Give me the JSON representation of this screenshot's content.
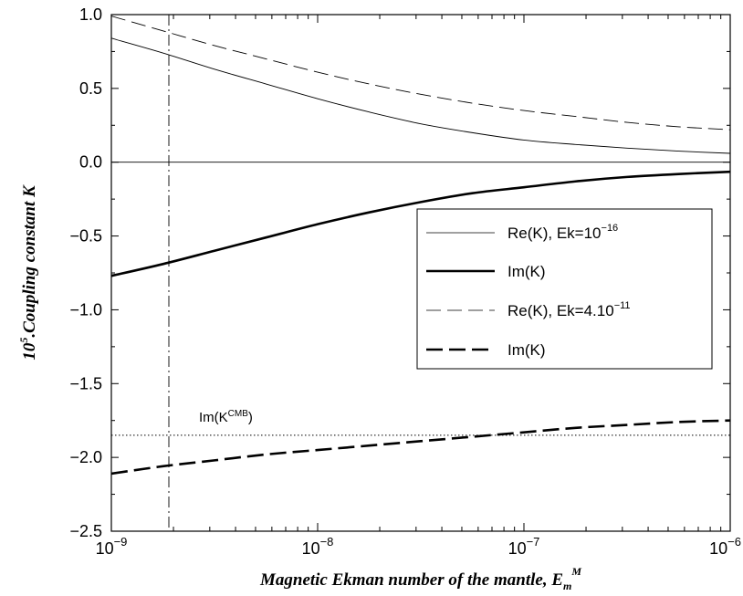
{
  "chart_data": {
    "type": "line",
    "title": "",
    "xlabel": {
      "main": "Magnetic Ekman number of the mantle, E",
      "sub": "m",
      "sup": "M"
    },
    "ylabel": {
      "pre": "10",
      "sup": "5",
      "post": ".Coupling constant K"
    },
    "xscale": "log",
    "xlim": [
      1e-09,
      1e-06
    ],
    "ylim": [
      -2.5,
      1.0
    ],
    "x_ticks": [
      {
        "value": 1e-09,
        "base": "10",
        "exp": "−9"
      },
      {
        "value": 1e-08,
        "base": "10",
        "exp": "−8"
      },
      {
        "value": 1e-07,
        "base": "10",
        "exp": "−7"
      },
      {
        "value": 1e-06,
        "base": "10",
        "exp": "−6"
      }
    ],
    "y_ticks": [
      {
        "value": 1.0,
        "label": "1.0"
      },
      {
        "value": 0.5,
        "label": "0.5"
      },
      {
        "value": 0.0,
        "label": "0.0"
      },
      {
        "value": -0.5,
        "label": "−0.5"
      },
      {
        "value": -1.0,
        "label": "−1.0"
      },
      {
        "value": -1.5,
        "label": "−1.5"
      },
      {
        "value": -2.0,
        "label": "−2.0"
      },
      {
        "value": -2.5,
        "label": "−2.5"
      }
    ],
    "grid": false,
    "legend_position": "right",
    "x": [
      1e-09,
      1.778e-09,
      3.162e-09,
      5.623e-09,
      1e-08,
      1.778e-08,
      3.162e-08,
      5.623e-08,
      1e-07,
      1.778e-07,
      3.162e-07,
      5.623e-07,
      1e-06
    ],
    "series": [
      {
        "name": "Re(K), Ek=10",
        "name_sup": "−16",
        "style": "thin-solid",
        "values": [
          0.84,
          0.74,
          0.63,
          0.53,
          0.43,
          0.34,
          0.26,
          0.2,
          0.15,
          0.12,
          0.095,
          0.075,
          0.06
        ]
      },
      {
        "name": "Im(K)",
        "style": "thick-solid",
        "values": [
          -0.77,
          -0.69,
          -0.6,
          -0.51,
          -0.42,
          -0.34,
          -0.27,
          -0.21,
          -0.17,
          -0.13,
          -0.1,
          -0.08,
          -0.065
        ]
      },
      {
        "name": "Re(K), Ek=4.10",
        "name_sup": "−11",
        "style": "thin-dashed",
        "values": [
          0.99,
          0.89,
          0.79,
          0.7,
          0.61,
          0.53,
          0.46,
          0.4,
          0.35,
          0.31,
          0.27,
          0.24,
          0.22
        ]
      },
      {
        "name": "Im(K)",
        "style": "thick-dashed",
        "values": [
          -2.11,
          -2.06,
          -2.02,
          -1.98,
          -1.95,
          -1.92,
          -1.89,
          -1.86,
          -1.83,
          -1.8,
          -1.78,
          -1.76,
          -1.75
        ]
      }
    ],
    "reference_lines": [
      {
        "orientation": "horizontal",
        "y": 0.0,
        "style": "thin-solid"
      },
      {
        "orientation": "horizontal",
        "y": -1.85,
        "style": "dotted",
        "label": "Im(K",
        "label_sup": "CMB",
        "label_end": ")"
      },
      {
        "orientation": "vertical",
        "x": 1.9e-09,
        "style": "dash-dot"
      }
    ]
  }
}
